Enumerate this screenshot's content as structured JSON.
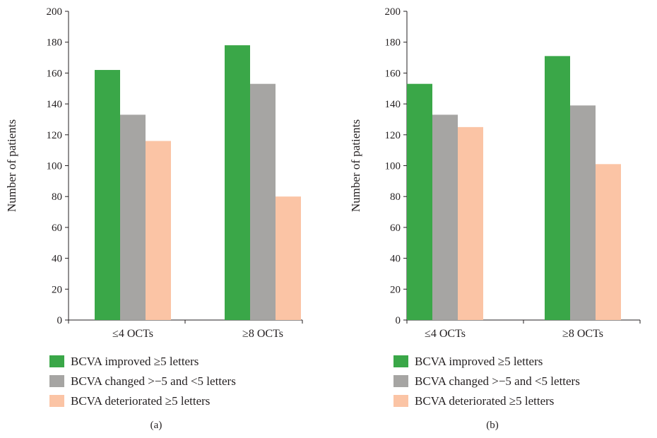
{
  "chart_data": [
    {
      "type": "bar",
      "panel_label": "(a)",
      "ylabel": "Number of patients",
      "xlabel": "",
      "ylim": [
        0,
        200
      ],
      "yticks": [
        0,
        20,
        40,
        60,
        80,
        100,
        120,
        140,
        160,
        180,
        200
      ],
      "categories": [
        "≤4 OCTs",
        "≥8 OCTs"
      ],
      "series": [
        {
          "name": "BCVA improved ≥5 letters",
          "color": "#3aa748",
          "values": [
            162,
            178
          ]
        },
        {
          "name": "BCVA changed >−5 and <5 letters",
          "color": "#a6a5a3",
          "values": [
            133,
            153
          ]
        },
        {
          "name": "BCVA deteriorated ≥5 letters",
          "color": "#fbc4a5",
          "values": [
            116,
            80
          ]
        }
      ],
      "legend_position": "bottom"
    },
    {
      "type": "bar",
      "panel_label": "(b)",
      "ylabel": "Number of patients",
      "xlabel": "",
      "ylim": [
        0,
        200
      ],
      "yticks": [
        0,
        20,
        40,
        60,
        80,
        100,
        120,
        140,
        160,
        180,
        200
      ],
      "categories": [
        "≤4 OCTs",
        "≥8 OCTs"
      ],
      "series": [
        {
          "name": "BCVA improved ≥5 letters",
          "color": "#3aa748",
          "values": [
            153,
            171
          ]
        },
        {
          "name": "BCVA changed >−5 and <5 letters",
          "color": "#a6a5a3",
          "values": [
            133,
            139
          ]
        },
        {
          "name": "BCVA deteriorated ≥5 letters",
          "color": "#fbc4a5",
          "values": [
            125,
            101
          ]
        }
      ],
      "legend_position": "bottom"
    }
  ]
}
